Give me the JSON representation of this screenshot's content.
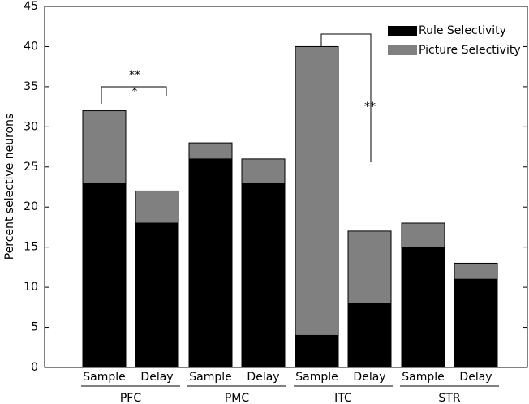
{
  "chart_data": {
    "type": "stacked_bar",
    "ylabel": "Percent selective neurons",
    "categories": [
      "Sample",
      "Delay",
      "Sample",
      "Delay",
      "Sample",
      "Delay",
      "Sample",
      "Delay"
    ],
    "groups": [
      "PFC",
      "PMC",
      "ITC",
      "STR"
    ],
    "series": [
      {
        "name": "Rule Selectivity",
        "color": "#000000",
        "values": [
          23,
          18,
          26,
          23,
          4,
          8,
          15,
          11
        ]
      },
      {
        "name": "Picture Selectivity",
        "color": "#808080",
        "values": [
          9,
          4,
          2,
          3,
          36,
          9,
          3,
          2
        ]
      }
    ],
    "ylim": [
      0,
      45
    ],
    "yticks": [
      0,
      5,
      10,
      15,
      20,
      25,
      30,
      35,
      40,
      45
    ],
    "legend": "upper right",
    "annotations": [
      {
        "text": "**"
      },
      {
        "text": "*"
      },
      {
        "text": "**"
      }
    ]
  }
}
